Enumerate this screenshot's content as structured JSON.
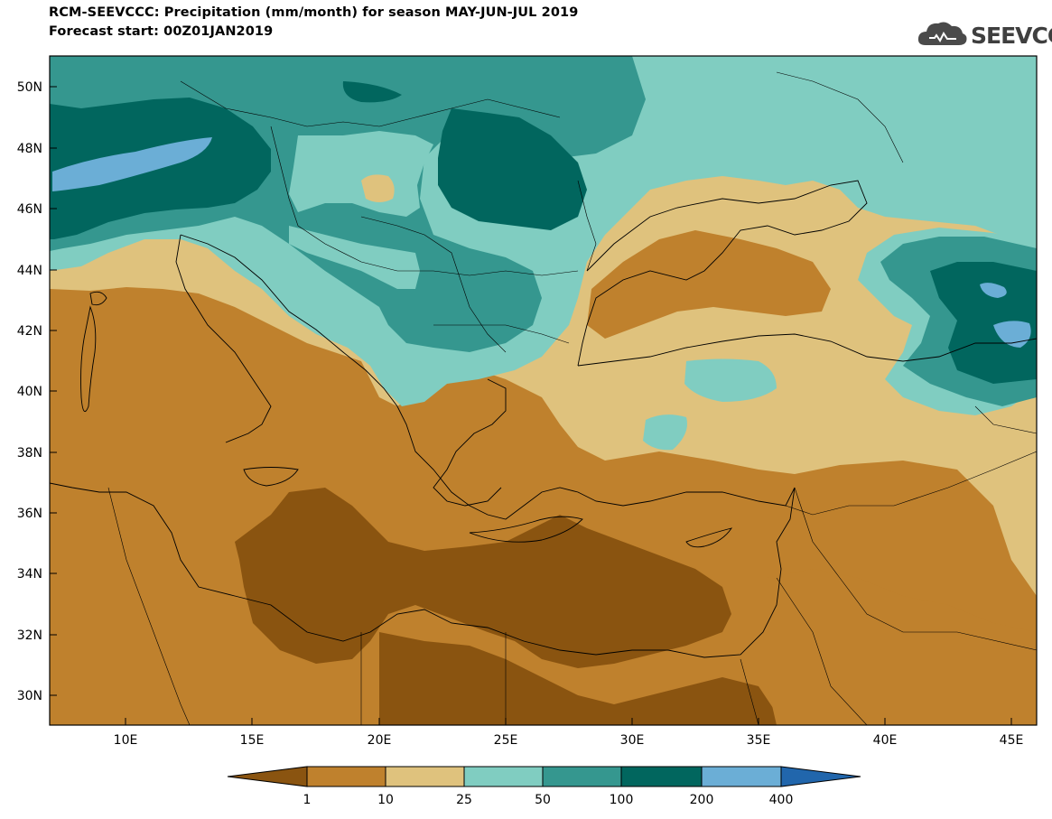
{
  "header": {
    "title": "RCM-SEEVCCC: Precipitation (mm/month) for season MAY-JUN-JUL 2019",
    "subtitle": "Forecast start: 00Z01JAN2019",
    "logo_text": "SEEVCCC"
  },
  "map": {
    "lat_labels": [
      "50N",
      "48N",
      "46N",
      "44N",
      "42N",
      "40N",
      "38N",
      "36N",
      "34N",
      "32N",
      "30N"
    ],
    "lon_labels": [
      "10E",
      "15E",
      "20E",
      "25E",
      "30E",
      "35E",
      "40E",
      "45E"
    ]
  },
  "colorbar": {
    "labels": [
      "1",
      "10",
      "25",
      "50",
      "100",
      "200",
      "400"
    ],
    "colors": [
      "#8a5410",
      "#bf812d",
      "#dfc27d",
      "#80cdc1",
      "#35978f",
      "#01665e",
      "#6baed6",
      "#2166ac"
    ]
  }
}
